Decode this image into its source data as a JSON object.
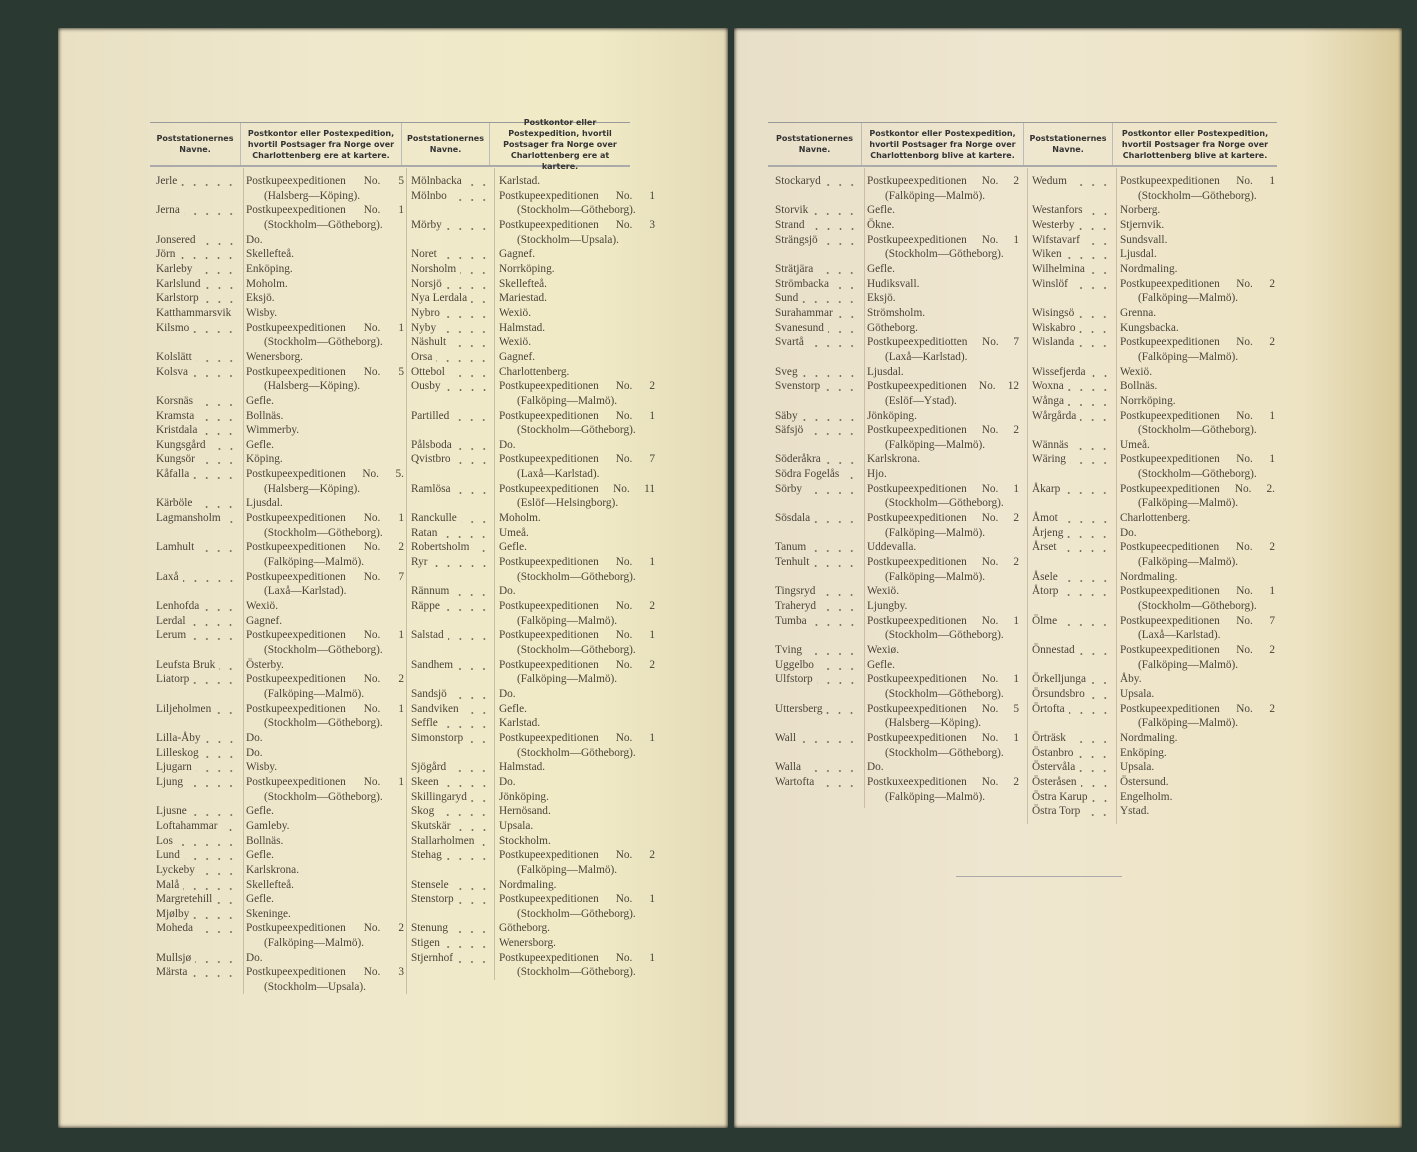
{
  "left_page": {
    "headers": [
      "Poststationernes Navne.",
      "Postkontor eller Postexpedition, hvortil Postsager fra Norge over Charlottenberg ere at kartere.",
      "Poststationernes Navne.",
      "Postkontor eller Postexpedition, hvortil Postsager fra Norge over Charlottenberg ere at kartere."
    ],
    "col1": [
      {
        "name": "Jerle",
        "dest": "Postkupeexpeditionen No. 5",
        "route": "(Halsberg—Köping)."
      },
      {
        "name": "Jerna",
        "dest": "Postkupeexpeditionen No. 1",
        "route": "(Stockholm—Götheborg)."
      },
      {
        "name": "Jonsered",
        "dest": "Do."
      },
      {
        "name": "Jörn",
        "dest": "Skellefteå."
      },
      {
        "name": "Karleby",
        "dest": "Enköping."
      },
      {
        "name": "Karlslund",
        "dest": "Moholm."
      },
      {
        "name": "Karlstorp",
        "dest": "Eksjö."
      },
      {
        "name": "Katthammarsvik",
        "dest": "Wisby."
      },
      {
        "name": "Kilsmo",
        "dest": "Postkupeexpeditionen No. 1",
        "route": "(Stockholm—Götheborg)."
      },
      {
        "name": "Kolslätt",
        "dest": "Wenersborg."
      },
      {
        "name": "Kolsva",
        "dest": "Postkupeexpeditionen No. 5",
        "route": "(Halsberg—Köping)."
      },
      {
        "name": "Korsnäs",
        "dest": "Gefle."
      },
      {
        "name": "Kramsta",
        "dest": "Bollnäs."
      },
      {
        "name": "Kristdala",
        "dest": "Wimmerby."
      },
      {
        "name": "Kungsgård",
        "dest": "Gefle."
      },
      {
        "name": "Kungsör",
        "dest": "Köping."
      },
      {
        "name": "Kåfalla",
        "dest": "Postkupeexpeditionen No. 5.",
        "route": "(Halsberg—Köping)."
      },
      {
        "name": "Kärböle",
        "dest": "Ljusdal."
      },
      {
        "name": "Lagmansholm",
        "dest": "Postkupeexpeditionen No. 1",
        "route": "(Stockholm—Götheborg)."
      },
      {
        "name": "Lamhult",
        "dest": "Postkupeexpeditionen No. 2",
        "route": "(Falköping—Malmö)."
      },
      {
        "name": "Laxå",
        "dest": "Postkupeexpeditionen No. 7",
        "route": "(Laxå—Karlstad)."
      },
      {
        "name": "Lenhofda",
        "dest": "Wexiö."
      },
      {
        "name": "Lerdal",
        "dest": "Gagnef."
      },
      {
        "name": "Lerum",
        "dest": "Postkupeexpeditionen No. 1",
        "route": "(Stockholm—Götheborg)."
      },
      {
        "name": "Leufsta Bruk",
        "dest": "Österby."
      },
      {
        "name": "Liatorp",
        "dest": "Postkupeexpeditionen No. 2",
        "route": "(Falköping—Malmö)."
      },
      {
        "name": "Liljeholmen",
        "dest": "Postkupeexpeditionen No. 1",
        "route": "(Stockholm—Götheborg)."
      },
      {
        "name": "Lilla-Åby",
        "dest": "Do."
      },
      {
        "name": "Lilleskog",
        "dest": "Do."
      },
      {
        "name": "Ljugarn",
        "dest": "Wisby."
      },
      {
        "name": "Ljung",
        "dest": "Postkupeexpeditionen No. 1",
        "route": "(Stockholm—Götheborg)."
      },
      {
        "name": "Ljusne",
        "dest": "Gefle."
      },
      {
        "name": "Loftahammar",
        "dest": "Gamleby."
      },
      {
        "name": "Los",
        "dest": "Bollnäs."
      },
      {
        "name": "Lund",
        "dest": "Gefle."
      },
      {
        "name": "Lyckeby",
        "dest": "Karlskrona."
      },
      {
        "name": "Malå",
        "dest": "Skellefteå."
      },
      {
        "name": "Margretehill",
        "dest": "Gefle."
      },
      {
        "name": "Mjølby",
        "dest": "Skeninge."
      },
      {
        "name": "Moheda",
        "dest": "Postkupeexpeditionen No. 2",
        "route": "(Falköping—Malmö)."
      },
      {
        "name": "Mullsjø",
        "dest": "Do."
      },
      {
        "name": "Märsta",
        "dest": "Postkupeexpeditionen No. 3",
        "route": "(Stockholm—Upsala)."
      }
    ],
    "col2": [
      {
        "name": "Mölnbacka",
        "dest": "Karlstad."
      },
      {
        "name": "Mölnbo",
        "dest": "Postkupeexpeditionen No. 1",
        "route": "(Stockholm—Götheborg)."
      },
      {
        "name": "Mörby",
        "dest": "Postkupeexpeditionen No. 3",
        "route": "(Stockholm—Upsala)."
      },
      {
        "name": "Noret",
        "dest": "Gagnef."
      },
      {
        "name": "Norsholm",
        "dest": "Norrköping."
      },
      {
        "name": "Norsjö",
        "dest": "Skellefteå."
      },
      {
        "name": "Nya Lerdala",
        "dest": "Mariestad."
      },
      {
        "name": "Nybro",
        "dest": "Wexiö."
      },
      {
        "name": "Nyby",
        "dest": "Halmstad."
      },
      {
        "name": "Näshult",
        "dest": "Wexiö."
      },
      {
        "name": "Orsa",
        "dest": "Gagnef."
      },
      {
        "name": "Ottebol",
        "dest": "Charlottenberg."
      },
      {
        "name": "Ousby",
        "dest": "Postkupeexpeditionen No. 2",
        "route": "(Falköping—Malmö)."
      },
      {
        "name": "Partilled",
        "dest": "Postkupeexpeditionen No. 1",
        "route": "(Stockholm—Götheborg)."
      },
      {
        "name": "Pålsboda",
        "dest": "Do."
      },
      {
        "name": "Qvistbro",
        "dest": "Postkupeexpeditionen No. 7",
        "route": "(Laxå—Karlstad)."
      },
      {
        "name": "Ramlösa",
        "dest": "Postkupeexpeditionen No. 11",
        "route": "(Eslöf—Helsingborg)."
      },
      {
        "name": "Ranckulle",
        "dest": "Moholm."
      },
      {
        "name": "Ratan",
        "dest": "Umeå."
      },
      {
        "name": "Robertsholm",
        "dest": "Gefle."
      },
      {
        "name": "Ryr",
        "dest": "Postkupeexpeditionen No. 1",
        "route": "(Stockholm—Götheborg)."
      },
      {
        "name": "Rännum",
        "dest": "Do."
      },
      {
        "name": "Räppe",
        "dest": "Postkupeexpeditionen No. 2",
        "route": "(Falköping—Malmö)."
      },
      {
        "name": "Salstad",
        "dest": "Postkupeexpeditionen No. 1",
        "route": "(Stockholm—Götheborg)."
      },
      {
        "name": "Sandhem",
        "dest": "Postkupeexpeditionen No. 2",
        "route": "(Falköping—Malmö)."
      },
      {
        "name": "Sandsjö",
        "dest": "Do."
      },
      {
        "name": "Sandviken",
        "dest": "Gefle."
      },
      {
        "name": "Seffle",
        "dest": "Karlstad."
      },
      {
        "name": "Simonstorp",
        "dest": "Postkupeexpeditionen No. 1",
        "route": "(Stockholm—Götheborg)."
      },
      {
        "name": "Sjögård",
        "dest": "Halmstad."
      },
      {
        "name": "Skeen",
        "dest": "Do."
      },
      {
        "name": "Skillingaryd",
        "dest": "Jönköping."
      },
      {
        "name": "Skog",
        "dest": "Hernösand."
      },
      {
        "name": "Skutskär",
        "dest": "Upsala."
      },
      {
        "name": "Stallarholmen",
        "dest": "Stockholm."
      },
      {
        "name": "Stehag",
        "dest": "Postkupeexpeditionen No. 2",
        "route": "(Falköping—Malmö)."
      },
      {
        "name": "Stensele",
        "dest": "Nordmaling."
      },
      {
        "name": "Stenstorp",
        "dest": "Postkupeexpeditionen No. 1",
        "route": "(Stockholm—Götheborg)."
      },
      {
        "name": "Stenung",
        "dest": "Götheborg."
      },
      {
        "name": "Stigen",
        "dest": "Wenersborg."
      },
      {
        "name": "Stjernhof",
        "dest": "Postkupeexpeditionen No. 1",
        "route": "(Stockholm—Götheborg)."
      }
    ]
  },
  "right_page": {
    "headers": [
      "Poststationernes Navne.",
      "Postkontor eller Postexpedition, hvortil Postsager fra Norge over Charlottenborg blive at kartere.",
      "Poststationernes Navne.",
      "Postkontor eller Postexpedition, hvortil Postsager fra Norge over Charlottenberg blive at kartere."
    ],
    "col1": [
      {
        "name": "Stockaryd",
        "dest": "Postkupeexpeditionen No. 2",
        "route": "(Falköping—Malmö)."
      },
      {
        "name": "Storvik",
        "dest": "Gefle."
      },
      {
        "name": "Strand",
        "dest": "Ökne."
      },
      {
        "name": "Strängsjö",
        "dest": "Postkupeexpeditionen No. 1",
        "route": "(Stockholm—Götheborg)."
      },
      {
        "name": "Strätjära",
        "dest": "Gefle."
      },
      {
        "name": "Strömbacka",
        "dest": "Hudiksvall."
      },
      {
        "name": "Sund",
        "dest": "Eksjö."
      },
      {
        "name": "Surahammar",
        "dest": "Strömsholm."
      },
      {
        "name": "Svanesund",
        "dest": "Götheborg."
      },
      {
        "name": "Svartå",
        "dest": "Postkupeexpeditiotten No. 7",
        "route": "(Laxå—Karlstad)."
      },
      {
        "name": "Sveg",
        "dest": "Ljusdal."
      },
      {
        "name": "Svenstorp",
        "dest": "Postkupeexpeditionen No. 12",
        "route": "(Eslöf—Ystad)."
      },
      {
        "name": "Säby",
        "dest": "Jönköping."
      },
      {
        "name": "Säfsjö",
        "dest": "Postkupeexpeditionen No. 2",
        "route": "(Falköping—Malmö)."
      },
      {
        "name": "Söderåkra",
        "dest": "Karlskrona."
      },
      {
        "name": "Södra Fogelås",
        "dest": "Hjo."
      },
      {
        "name": "Sörby",
        "dest": "Postkupeexpeditionen No. 1",
        "route": "(Stockholm—Götheborg)."
      },
      {
        "name": "Sösdala",
        "dest": "Postkupeexpeditionen No. 2",
        "route": "(Falköping—Malmö)."
      },
      {
        "name": "Tanum",
        "dest": "Uddevalla."
      },
      {
        "name": "Tenhult",
        "dest": "Postkupeexpeditionen No. 2",
        "route": "(Falköping—Malmö)."
      },
      {
        "name": "Tingsryd",
        "dest": "Wexiö."
      },
      {
        "name": "Traheryd",
        "dest": "Ljungby."
      },
      {
        "name": "Tumba",
        "dest": "Postkupeexpeditionen No. 1",
        "route": "(Stockholm—Götheborg)."
      },
      {
        "name": "Tving",
        "dest": "Wexiø."
      },
      {
        "name": "Uggelbo",
        "dest": "Gefle."
      },
      {
        "name": "Ulfstorp",
        "dest": "Postkupeexpeditionen No. 1",
        "route": "(Stockholm—Götheborg)."
      },
      {
        "name": "Uttersberg",
        "dest": "Postkupeexpeditionen No. 5",
        "route": "(Halsberg—Köping)."
      },
      {
        "name": "Wall",
        "dest": "Postkupeexpeditionen No. 1",
        "route": "(Stockholm—Götheborg)."
      },
      {
        "name": "Walla",
        "dest": "Do."
      },
      {
        "name": "Wartofta",
        "dest": "Postkuxeexpeditionen No. 2",
        "route": "(Falköping—Malmö)."
      }
    ],
    "col2": [
      {
        "name": "Wedum",
        "dest": "Postkupeexpeditionen No. 1",
        "route": "(Stockholm—Götheborg)."
      },
      {
        "name": "Westanfors",
        "dest": "Norberg."
      },
      {
        "name": "Westerby",
        "dest": "Stjernvik."
      },
      {
        "name": "Wifstavarf",
        "dest": "Sundsvall."
      },
      {
        "name": "Wiken",
        "dest": "Ljusdal."
      },
      {
        "name": "Wilhelmina",
        "dest": "Nordmaling."
      },
      {
        "name": "Winslöf",
        "dest": "Postkupeexpeditionen No. 2",
        "route": "(Falköping—Malmö)."
      },
      {
        "name": "Wisingsö",
        "dest": "Grenna."
      },
      {
        "name": "Wiskabro",
        "dest": "Kungsbacka."
      },
      {
        "name": "Wislanda",
        "dest": "Postkupeexpeditionen No. 2",
        "route": "(Falköping—Malmö)."
      },
      {
        "name": "Wissefjerda",
        "dest": "Wexiö."
      },
      {
        "name": "Woxna",
        "dest": "Bollnäs."
      },
      {
        "name": "Wånga",
        "dest": "Norrköping."
      },
      {
        "name": "Wårgårda",
        "dest": "Postkupeexpeditionen No. 1",
        "route": "(Stockholm—Götheborg)."
      },
      {
        "name": "Wännäs",
        "dest": "Umeå."
      },
      {
        "name": "Wäring",
        "dest": "Postkupeexpeditionen No. 1",
        "route": "(Stockholm—Götheborg)."
      },
      {
        "name": "Åkarp",
        "dest": "Postkupeexpeditionen No. 2.",
        "route": "(Falköping—Malmö)."
      },
      {
        "name": "Åmot",
        "dest": "Charlottenberg."
      },
      {
        "name": "Årjeng",
        "dest": "Do."
      },
      {
        "name": "Årset",
        "dest": "Postkupeecpeditionen No. 2",
        "route": "(Falköping—Malmö)."
      },
      {
        "name": "Åsele",
        "dest": "Nordmaling."
      },
      {
        "name": "Åtorp",
        "dest": "Postkupeexpeditionen No. 1",
        "route": "(Stockholm—Götheborg)."
      },
      {
        "name": "Ölme",
        "dest": "Postkupeexpeditionen No. 7",
        "route": "(Laxå—Karlstad)."
      },
      {
        "name": "Önnestad",
        "dest": "Postkupeexpeditionen No. 2",
        "route": "(Falköping—Malmö)."
      },
      {
        "name": "Örkelljunga",
        "dest": "Åby."
      },
      {
        "name": "Örsundsbro",
        "dest": "Upsala."
      },
      {
        "name": "Örtofta",
        "dest": "Postkupeexpeditionen No. 2",
        "route": "(Falköping—Malmö)."
      },
      {
        "name": "Örträsk",
        "dest": "Nordmaling."
      },
      {
        "name": "Östanbro",
        "dest": "Enköping."
      },
      {
        "name": "Östervåla",
        "dest": "Upsala."
      },
      {
        "name": "Österåsen",
        "dest": "Östersund."
      },
      {
        "name": "Östra Karup",
        "dest": "Engelholm."
      },
      {
        "name": "Östra Torp",
        "dest": "Ystad."
      }
    ]
  }
}
